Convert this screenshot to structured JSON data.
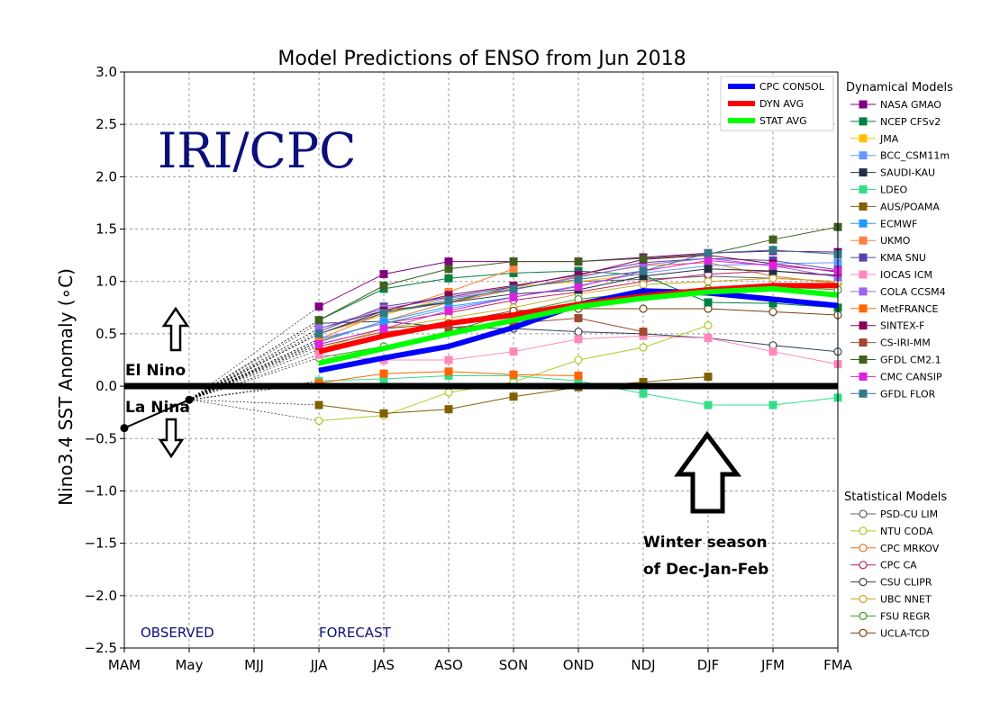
{
  "chart_data": {
    "type": "line",
    "title": "Model Predictions of ENSO from Jun 2018",
    "xlabel": "",
    "ylabel": "Nino3.4 SST Anomaly (∘C)",
    "ylim": [
      -2.5,
      3.0
    ],
    "grid": true,
    "categories": [
      "MAM",
      "May",
      "MJJ",
      "JJA",
      "JAS",
      "ASO",
      "SON",
      "OND",
      "NDJ",
      "DJF",
      "JFM",
      "FMA"
    ],
    "yticks": [
      "3.0",
      "2.5",
      "2.0",
      "1.5",
      "1.0",
      "0.5",
      "0.0",
      "−0.5",
      "−1.0",
      "−1.5",
      "−2.0",
      "−2.5"
    ],
    "observed": {
      "name": "Observed",
      "values": [
        -0.4,
        -0.13
      ]
    },
    "consensus": [
      {
        "name": "CPC CONSOL",
        "color": "#0000ff",
        "values": [
          null,
          null,
          null,
          0.15,
          0.27,
          0.38,
          0.56,
          0.78,
          0.91,
          0.89,
          0.83,
          0.77
        ]
      },
      {
        "name": "DYN AVG",
        "color": "#ff0000",
        "values": [
          null,
          null,
          null,
          0.33,
          0.48,
          0.6,
          0.68,
          0.78,
          0.86,
          0.92,
          0.96,
          0.96
        ]
      },
      {
        "name": "STAT AVG",
        "color": "#00ff00",
        "values": [
          null,
          null,
          null,
          0.22,
          0.36,
          0.5,
          0.63,
          0.76,
          0.84,
          0.9,
          0.93,
          0.87
        ]
      }
    ],
    "dynamical_header": "Dynamical Models",
    "dynamical": [
      {
        "name": "NASA GMAO",
        "color": "#800080",
        "values": [
          null,
          null,
          null,
          0.76,
          1.07,
          1.19,
          1.19,
          1.19,
          1.23,
          1.27,
          1.29,
          1.28
        ]
      },
      {
        "name": "NCEP CFSv2",
        "color": "#008040",
        "values": [
          null,
          null,
          null,
          0.63,
          0.93,
          1.03,
          1.08,
          1.1,
          1.06,
          0.8,
          0.79,
          0.75
        ]
      },
      {
        "name": "JMA",
        "color": "#ffc000",
        "values": [
          null,
          null,
          null,
          0.5,
          0.68,
          0.85,
          0.95,
          1.0,
          1.07,
          null,
          null,
          null
        ]
      },
      {
        "name": "BCC_CSM11m",
        "color": "#6699ff",
        "values": [
          null,
          null,
          null,
          0.45,
          0.6,
          0.74,
          0.85,
          0.96,
          1.08,
          1.15,
          1.17,
          1.18
        ]
      },
      {
        "name": "SAUDI-KAU",
        "color": "#203040",
        "values": [
          null,
          null,
          null,
          0.55,
          0.72,
          0.8,
          0.88,
          0.92,
          1.05,
          1.12,
          1.1,
          1.06
        ]
      },
      {
        "name": "LDEO",
        "color": "#33dd88",
        "values": [
          null,
          null,
          null,
          0.05,
          0.07,
          0.1,
          0.1,
          0.05,
          -0.07,
          -0.18,
          -0.18,
          -0.11
        ]
      },
      {
        "name": "AUS/POAMA",
        "color": "#806000",
        "values": [
          null,
          null,
          null,
          -0.18,
          -0.26,
          -0.22,
          -0.1,
          -0.01,
          0.04,
          0.09,
          null,
          null
        ]
      },
      {
        "name": "ECMWF",
        "color": "#2299ff",
        "values": [
          null,
          null,
          null,
          0.42,
          0.62,
          0.76,
          0.85,
          null,
          null,
          null,
          null,
          null
        ]
      },
      {
        "name": "UKMO",
        "color": "#ff8040",
        "values": [
          null,
          null,
          null,
          0.45,
          0.7,
          0.9,
          1.12,
          null,
          null,
          null,
          null,
          null
        ]
      },
      {
        "name": "KMA SNU",
        "color": "#5544aa",
        "values": [
          null,
          null,
          null,
          0.52,
          0.76,
          0.85,
          0.95,
          1.07,
          1.18,
          1.22,
          1.2,
          1.11
        ]
      },
      {
        "name": "IOCAS ICM",
        "color": "#ff88bb",
        "values": [
          null,
          null,
          null,
          0.3,
          0.25,
          0.25,
          0.33,
          0.45,
          0.48,
          0.46,
          0.33,
          0.21
        ]
      },
      {
        "name": "COLA CCSM4",
        "color": "#9966ee",
        "values": [
          null,
          null,
          null,
          0.55,
          0.74,
          0.84,
          0.92,
          1.04,
          1.16,
          1.22,
          1.15,
          1.04
        ]
      },
      {
        "name": "MetFRANCE",
        "color": "#ff6600",
        "values": [
          null,
          null,
          null,
          0.03,
          0.12,
          0.14,
          0.11,
          0.1,
          null,
          null,
          null,
          null
        ]
      },
      {
        "name": "SINTEX-F",
        "color": "#880055",
        "values": [
          null,
          null,
          null,
          0.5,
          0.72,
          0.87,
          0.96,
          1.06,
          1.21,
          1.25,
          1.17,
          1.09
        ]
      },
      {
        "name": "CS-IRI-MM",
        "color": "#a04830",
        "values": [
          null,
          null,
          null,
          0.38,
          0.52,
          0.56,
          0.6,
          0.65,
          0.52,
          null,
          null,
          null
        ]
      },
      {
        "name": "GFDL CM2.1",
        "color": "#406020",
        "values": [
          null,
          null,
          null,
          0.63,
          0.96,
          1.12,
          1.19,
          1.19,
          1.22,
          1.26,
          1.4,
          1.52
        ]
      },
      {
        "name": "CMC CANSIP",
        "color": "#dd22dd",
        "values": [
          null,
          null,
          null,
          0.4,
          0.55,
          0.72,
          0.85,
          0.95,
          1.1,
          1.2,
          1.15,
          1.1
        ]
      },
      {
        "name": "GFDL FLOR",
        "color": "#337788",
        "values": [
          null,
          null,
          null,
          0.5,
          0.7,
          0.82,
          0.93,
          1.02,
          1.1,
          1.27,
          1.3,
          1.26
        ]
      }
    ],
    "statistical_header": "Statistical Models",
    "statistical": [
      {
        "name": "PSD-CU LIM",
        "color": "#606060",
        "values": [
          null,
          null,
          null,
          0.5,
          0.7,
          0.8,
          0.95,
          1.0,
          1.02,
          1.05,
          1.03,
          1.0
        ]
      },
      {
        "name": "NTU CODA",
        "color": "#aacc22",
        "values": [
          null,
          null,
          null,
          -0.33,
          -0.28,
          -0.06,
          0.04,
          0.25,
          0.37,
          0.58,
          null,
          null
        ]
      },
      {
        "name": "CPC MRKOV",
        "color": "#dd7722",
        "values": [
          null,
          null,
          null,
          0.43,
          0.62,
          0.8,
          0.92,
          1.05,
          1.15,
          1.18,
          1.05,
          0.98
        ]
      },
      {
        "name": "CPC CA",
        "color": "#bb2266",
        "values": [
          null,
          null,
          null,
          0.45,
          0.6,
          0.7,
          0.82,
          0.9,
          1.0,
          1.07,
          1.1,
          1.05
        ]
      },
      {
        "name": "CSU CLIPR",
        "color": "#334455",
        "values": [
          null,
          null,
          null,
          0.6,
          0.62,
          0.56,
          0.55,
          0.52,
          0.5,
          0.46,
          0.39,
          0.33
        ]
      },
      {
        "name": "UBC NNET",
        "color": "#ccaa22",
        "values": [
          null,
          null,
          null,
          0.35,
          0.55,
          0.65,
          0.75,
          0.88,
          0.97,
          1.0,
          1.03,
          1.0
        ]
      },
      {
        "name": "FSU REGR",
        "color": "#449922",
        "values": [
          null,
          null,
          null,
          0.27,
          0.38,
          0.52,
          0.7,
          0.83,
          0.9,
          0.93,
          0.95,
          0.92
        ]
      },
      {
        "name": "UCLA-TCD",
        "color": "#774411",
        "values": [
          null,
          null,
          null,
          0.4,
          0.55,
          0.6,
          0.72,
          0.74,
          0.74,
          0.74,
          0.71,
          0.68
        ]
      }
    ],
    "annotations": {
      "watermark": "IRI/CPC",
      "el_nino": "El Nino",
      "la_nina": "La Nina",
      "observed_label": "OBSERVED",
      "forecast_label": "FORECAST",
      "winter_line1": "Winter season",
      "winter_line2": "of Dec-Jan-Feb"
    }
  }
}
